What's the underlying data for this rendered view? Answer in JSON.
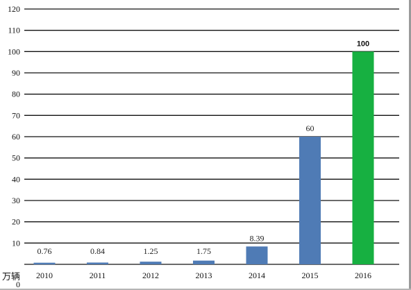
{
  "chart_data": {
    "type": "bar",
    "categories": [
      "2010",
      "2011",
      "2012",
      "2013",
      "2014",
      "2015",
      "2016"
    ],
    "values": [
      0.76,
      0.84,
      1.25,
      1.75,
      8.39,
      60,
      100
    ],
    "data_labels": [
      "0.76",
      "0.84",
      "1.25",
      "1.75",
      "8.39",
      "60",
      "100"
    ],
    "y_ticks": [
      "0",
      "10",
      "20",
      "30",
      "40",
      "50",
      "60",
      "70",
      "80",
      "90",
      "100",
      "110",
      "120"
    ],
    "ylim": [
      0,
      120
    ],
    "unit_label": "万辆",
    "title": "",
    "xlabel": "",
    "ylabel": "",
    "grid": true,
    "colors": {
      "default_bar": "#4f7bb5",
      "highlight_bar": "#17b041",
      "gridline": "#111111"
    },
    "highlight_index": 6
  }
}
